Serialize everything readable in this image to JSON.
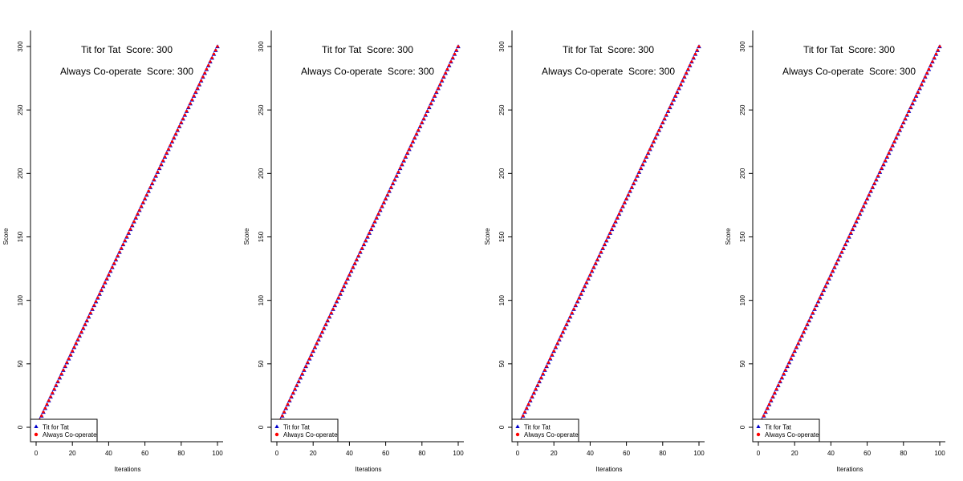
{
  "chart_data": [
    {
      "type": "scatter",
      "xlabel": "Iterations",
      "ylabel": "Score",
      "x_ticks": [
        0,
        20,
        40,
        60,
        80,
        100
      ],
      "y_ticks": [
        0,
        50,
        100,
        150,
        200,
        250,
        300
      ],
      "xlim": [
        0,
        100
      ],
      "ylim": [
        0,
        300
      ],
      "annotations": [
        "Tit for Tat  Score: 300",
        "Always Co-operate  Score: 300"
      ],
      "legend": {
        "placement": "bottom-left",
        "entries": [
          "Tit for Tat",
          "Always Co-operate"
        ]
      },
      "series": [
        {
          "name": "Tit for Tat",
          "marker": "triangle",
          "color": "#0000cc",
          "x_start": 1,
          "x_end": 100,
          "slope": 3
        },
        {
          "name": "Always Co-operate",
          "marker": "circle",
          "color": "#ff0000",
          "x_start": 1,
          "x_end": 100,
          "slope": 3
        }
      ]
    },
    {
      "type": "scatter",
      "xlabel": "Iterations",
      "ylabel": "Score",
      "x_ticks": [
        0,
        20,
        40,
        60,
        80,
        100
      ],
      "y_ticks": [
        0,
        50,
        100,
        150,
        200,
        250,
        300
      ],
      "xlim": [
        0,
        100
      ],
      "ylim": [
        0,
        300
      ],
      "annotations": [
        "Tit for Tat  Score: 300",
        "Always Co-operate  Score: 300"
      ],
      "legend": {
        "placement": "bottom-left",
        "entries": [
          "Tit for Tat",
          "Always Co-operate"
        ]
      },
      "series": [
        {
          "name": "Tit for Tat",
          "marker": "triangle",
          "color": "#0000cc",
          "x_start": 1,
          "x_end": 100,
          "slope": 3
        },
        {
          "name": "Always Co-operate",
          "marker": "circle",
          "color": "#ff0000",
          "x_start": 1,
          "x_end": 100,
          "slope": 3
        }
      ]
    },
    {
      "type": "scatter",
      "xlabel": "Iterations",
      "ylabel": "Score",
      "x_ticks": [
        0,
        20,
        40,
        60,
        80,
        100
      ],
      "y_ticks": [
        0,
        50,
        100,
        150,
        200,
        250,
        300
      ],
      "xlim": [
        0,
        100
      ],
      "ylim": [
        0,
        300
      ],
      "annotations": [
        "Tit for Tat  Score: 300",
        "Always Co-operate  Score: 300"
      ],
      "legend": {
        "placement": "bottom-left",
        "entries": [
          "Tit for Tat",
          "Always Co-operate"
        ]
      },
      "series": [
        {
          "name": "Tit for Tat",
          "marker": "triangle",
          "color": "#0000cc",
          "x_start": 1,
          "x_end": 100,
          "slope": 3
        },
        {
          "name": "Always Co-operate",
          "marker": "circle",
          "color": "#ff0000",
          "x_start": 1,
          "x_end": 100,
          "slope": 3
        }
      ]
    },
    {
      "type": "scatter",
      "xlabel": "Iterations",
      "ylabel": "Score",
      "x_ticks": [
        0,
        20,
        40,
        60,
        80,
        100
      ],
      "y_ticks": [
        0,
        50,
        100,
        150,
        200,
        250,
        300
      ],
      "xlim": [
        0,
        100
      ],
      "ylim": [
        0,
        300
      ],
      "annotations": [
        "Tit for Tat  Score: 300",
        "Always Co-operate  Score: 300"
      ],
      "legend": {
        "placement": "bottom-left",
        "entries": [
          "Tit for Tat",
          "Always Co-operate"
        ]
      },
      "series": [
        {
          "name": "Tit for Tat",
          "marker": "triangle",
          "color": "#0000cc",
          "x_start": 1,
          "x_end": 100,
          "slope": 3
        },
        {
          "name": "Always Co-operate",
          "marker": "circle",
          "color": "#ff0000",
          "x_start": 1,
          "x_end": 100,
          "slope": 3
        }
      ]
    }
  ]
}
